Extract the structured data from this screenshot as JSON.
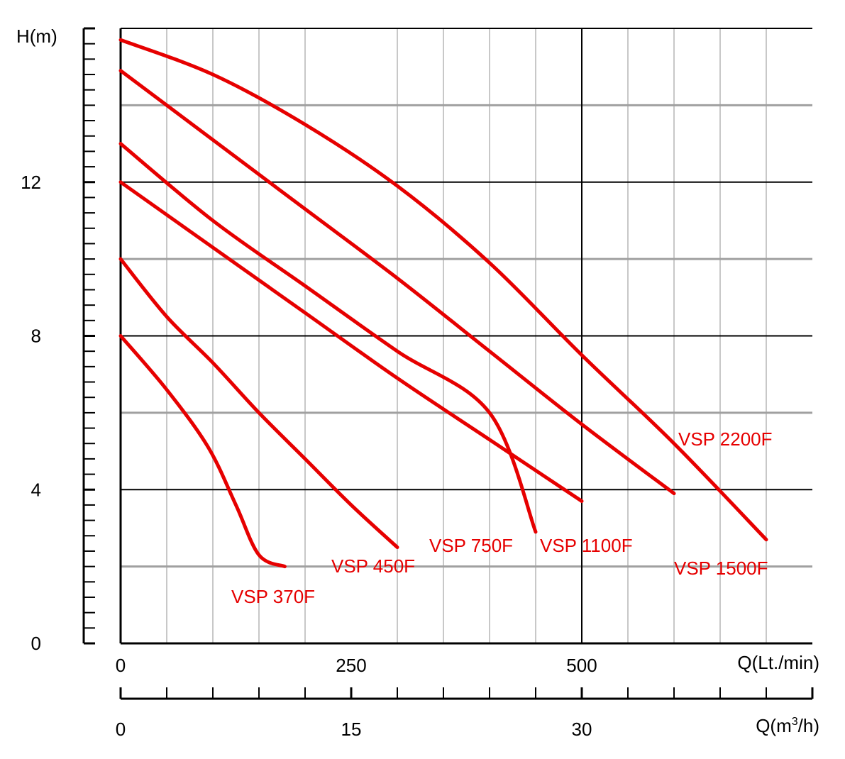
{
  "chart_data": {
    "type": "line",
    "y_axis": {
      "label": "H(m)",
      "ticks": [
        0,
        4,
        8,
        12
      ],
      "ylim": [
        0,
        16
      ]
    },
    "x_axis_primary": {
      "label": "Q(Lt./min)",
      "ticks": [
        0,
        250,
        500
      ],
      "xlim": [
        0,
        750
      ]
    },
    "x_axis_secondary": {
      "label_prefix": "Q(m",
      "label_superscript": "3",
      "label_suffix": "/h)",
      "ticks": [
        0,
        15,
        30
      ],
      "xlim": [
        0,
        45
      ]
    },
    "grid": true,
    "series_color": "#e60000",
    "series": [
      {
        "name": "VSP 370F",
        "points": [
          [
            0,
            8.0
          ],
          [
            50,
            6.6
          ],
          [
            95,
            5.1
          ],
          [
            125,
            3.6
          ],
          [
            150,
            2.3
          ],
          [
            178,
            2.0
          ]
        ]
      },
      {
        "name": "VSP 450F",
        "points": [
          [
            0,
            10.0
          ],
          [
            50,
            8.5
          ],
          [
            100,
            7.3
          ],
          [
            150,
            6.0
          ],
          [
            200,
            4.8
          ],
          [
            250,
            3.6
          ],
          [
            300,
            2.5
          ]
        ]
      },
      {
        "name": "VSP 750F",
        "points": [
          [
            0,
            12.0
          ],
          [
            100,
            10.3
          ],
          [
            200,
            8.6
          ],
          [
            300,
            6.9
          ],
          [
            400,
            5.3
          ],
          [
            500,
            3.7
          ]
        ]
      },
      {
        "name": "VSP 1100F",
        "points": [
          [
            0,
            13.0
          ],
          [
            100,
            11.0
          ],
          [
            200,
            9.3
          ],
          [
            300,
            7.6
          ],
          [
            400,
            6.0
          ],
          [
            450,
            2.9
          ]
        ]
      },
      {
        "name": "VSP 1500F",
        "points": [
          [
            0,
            14.9
          ],
          [
            100,
            13.1
          ],
          [
            200,
            11.3
          ],
          [
            300,
            9.5
          ],
          [
            400,
            7.6
          ],
          [
            500,
            5.7
          ],
          [
            600,
            3.9
          ]
        ]
      },
      {
        "name": "VSP 2200F",
        "points": [
          [
            0,
            15.7
          ],
          [
            100,
            14.8
          ],
          [
            200,
            13.5
          ],
          [
            300,
            11.9
          ],
          [
            400,
            9.9
          ],
          [
            500,
            7.5
          ],
          [
            600,
            5.2
          ],
          [
            700,
            2.7
          ]
        ]
      }
    ],
    "series_labels": [
      "VSP 370F",
      "VSP 450F",
      "VSP 750F",
      "VSP 1100F",
      "VSP 1500F",
      "VSP 2200F"
    ]
  }
}
